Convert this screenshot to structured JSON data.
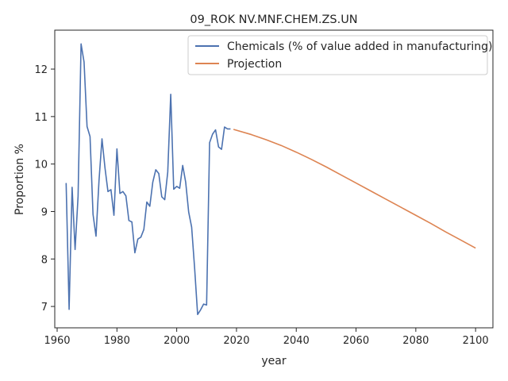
{
  "chart_data": {
    "type": "line",
    "title": "09_ROK NV.MNF.CHEM.ZS.UN",
    "xlabel": "year",
    "ylabel": "Proportion %",
    "xlim": [
      1959.2,
      2105.8
    ],
    "ylim": [
      6.55,
      12.82
    ],
    "xticks": [
      1960,
      1980,
      2000,
      2020,
      2040,
      2060,
      2080,
      2100
    ],
    "yticks": [
      7,
      8,
      9,
      10,
      11,
      12
    ],
    "grid": false,
    "legend": "top-right",
    "series": [
      {
        "name": "Chemicals (% of value added in manufacturing)",
        "color": "#4c72b0",
        "x": [
          1963,
          1964,
          1965,
          1966,
          1967,
          1968,
          1969,
          1970,
          1971,
          1972,
          1973,
          1974,
          1975,
          1976,
          1977,
          1978,
          1979,
          1980,
          1981,
          1982,
          1983,
          1984,
          1985,
          1986,
          1987,
          1988,
          1989,
          1990,
          1991,
          1992,
          1993,
          1994,
          1995,
          1996,
          1997,
          1998,
          1999,
          2000,
          2001,
          2002,
          2003,
          2004,
          2005,
          2006,
          2007,
          2008,
          2009,
          2010,
          2011,
          2012,
          2013,
          2014,
          2015,
          2016,
          2017,
          2018
        ],
        "y": [
          9.6,
          6.94,
          9.51,
          8.2,
          9.32,
          12.53,
          12.15,
          10.79,
          10.58,
          8.94,
          8.48,
          9.65,
          10.53,
          9.92,
          9.42,
          9.46,
          8.92,
          10.32,
          9.38,
          9.42,
          9.33,
          8.81,
          8.78,
          8.13,
          8.42,
          8.46,
          8.62,
          9.2,
          9.11,
          9.62,
          9.88,
          9.8,
          9.31,
          9.25,
          9.83,
          11.47,
          9.47,
          9.53,
          9.49,
          9.97,
          9.62,
          8.99,
          8.67,
          7.8,
          6.83,
          6.93,
          7.05,
          7.03,
          10.45,
          10.63,
          10.72,
          10.36,
          10.31,
          10.78,
          10.74,
          10.74
        ]
      },
      {
        "name": "Projection",
        "color": "#dd8452",
        "x": [
          2019,
          2025,
          2030,
          2035,
          2040,
          2045,
          2050,
          2055,
          2060,
          2065,
          2070,
          2075,
          2080,
          2085,
          2090,
          2095,
          2100
        ],
        "y": [
          10.73,
          10.62,
          10.51,
          10.39,
          10.25,
          10.1,
          9.94,
          9.77,
          9.6,
          9.43,
          9.26,
          9.09,
          8.92,
          8.75,
          8.57,
          8.4,
          8.23
        ]
      }
    ]
  }
}
